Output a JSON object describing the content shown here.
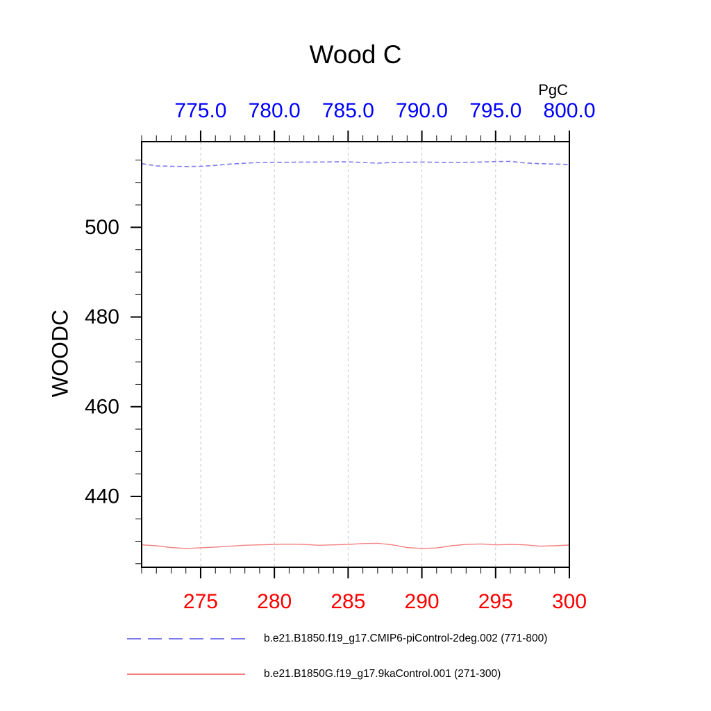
{
  "chart_data": {
    "type": "line",
    "title": "Wood C",
    "y_axis": {
      "label": "WOODC",
      "tick_labels": [
        "440",
        "460",
        "480",
        "500"
      ],
      "tick_values": [
        440,
        460,
        480,
        500
      ],
      "minor_tick_step": 5,
      "minor_tick_min": 425,
      "minor_tick_max": 515,
      "ylim": [
        424.2,
        519.1
      ]
    },
    "top_axis": {
      "unit": "PgC",
      "label_color": "#0000ff",
      "tick_labels": [
        "775.0",
        "780.0",
        "785.0",
        "790.0",
        "795.0",
        "800.0"
      ],
      "tick_values": [
        775,
        780,
        785,
        790,
        795,
        800
      ],
      "range": [
        771,
        800
      ]
    },
    "bottom_axis": {
      "label_color": "#ff0000",
      "tick_labels": [
        "275",
        "280",
        "285",
        "290",
        "295",
        "300"
      ],
      "tick_values": [
        275,
        280,
        285,
        290,
        295,
        300
      ],
      "range": [
        271,
        300
      ]
    },
    "grid_values": [
      275,
      280,
      285,
      290,
      295
    ],
    "grid_on": true,
    "colors": {
      "grid": "#c8c8c8",
      "axis": "#000000",
      "blue_line": "#7a7aec",
      "red_line": "#f28080"
    },
    "series": [
      {
        "name": "b.e21.B1850.f19_g17.CMIP6-piControl-2deg.002",
        "axis": "top",
        "x_start": 771,
        "x_end": 800,
        "style": "dashed",
        "color": "#7a7aec",
        "width": 1.6,
        "dash": "6.5 3.8",
        "values": [
          514.2,
          513.7,
          513.6,
          513.55,
          513.6,
          513.8,
          514.1,
          514.3,
          514.45,
          514.5,
          514.5,
          514.55,
          514.55,
          514.6,
          514.6,
          514.45,
          514.3,
          514.45,
          514.5,
          514.55,
          514.5,
          514.45,
          514.5,
          514.55,
          514.65,
          514.7,
          514.35,
          514.2,
          514.1,
          514.0
        ]
      },
      {
        "name": "b.e21.B1850G.f19_g17.9kaControl.001",
        "axis": "bottom",
        "x_start": 271,
        "x_end": 300,
        "style": "solid",
        "color": "#f28080",
        "width": 1.4,
        "dash": "",
        "values": [
          429.2,
          429.0,
          428.6,
          428.4,
          428.55,
          428.7,
          428.9,
          429.1,
          429.2,
          429.3,
          429.35,
          429.3,
          429.1,
          429.2,
          429.3,
          429.5,
          429.55,
          429.2,
          428.6,
          428.4,
          428.5,
          429.0,
          429.3,
          429.4,
          429.2,
          429.3,
          429.2,
          428.9,
          429.0,
          429.15
        ]
      }
    ]
  },
  "legend": {
    "entries": [
      {
        "label": "b.e21.B1850.f19_g17.CMIP6-piControl-2deg.002 (771-800)",
        "color": "#7a7aec",
        "style": "dashed",
        "dash": "20 10"
      },
      {
        "label": "b.e21.B1850G.f19_g17.9kaControl.001 (271-300)",
        "color": "#f28080",
        "style": "solid",
        "dash": ""
      }
    ]
  }
}
